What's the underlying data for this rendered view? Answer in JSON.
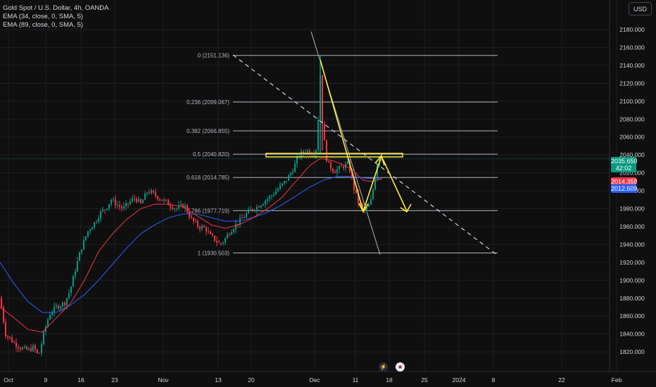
{
  "legend": {
    "symbol": "Gold Spot / U.S. Dollar, 4h, OANDA",
    "ema1": "EMA (34, close, 0, SMA, 5)",
    "ema2": "EMA (89, close, 0, SMA, 5)"
  },
  "currency": "USD",
  "badges": {
    "last_price": "2035.650",
    "countdown": "42:02",
    "ema34": "2014.358",
    "ema89": "2012.609"
  },
  "colors": {
    "background": "#0f0f0f",
    "up": "#089981",
    "down": "#f23645",
    "ema34": "#f23645",
    "ema89": "#2962ff",
    "annotation": "#ffeb3b",
    "fib": "#b2b5be"
  },
  "icons": [
    "lightning-icon",
    "us-flag-icon"
  ],
  "chart_data": {
    "type": "candlestick",
    "x_axis_labels": [
      "Oct",
      "9",
      "16",
      "23",
      "Nov",
      "13",
      "20",
      "Dec",
      "11",
      "18",
      "25",
      "2024",
      "8",
      "22",
      "Feb"
    ],
    "y_ticks": [
      1820,
      1840,
      1860,
      1880,
      1900,
      1920,
      1940,
      1960,
      1980,
      2000,
      2020,
      2040,
      2060,
      2080,
      2100,
      2120,
      2140,
      2160,
      2180
    ],
    "y_tick_labels": [
      "1820.000",
      "1840.000",
      "1860.000",
      "1880.000",
      "1900.000",
      "1920.000",
      "1940.000",
      "1960.000",
      "1980.000",
      "2000.000",
      "2020.000",
      "2040.000",
      "2060.000",
      "2080.000",
      "2100.000",
      "2120.000",
      "2140.000",
      "2160.000",
      "2180.000"
    ],
    "ylim": [
      1809,
      2195
    ],
    "fibonacci_levels": [
      {
        "label": "0 (2151.136)",
        "value": 2151.136
      },
      {
        "label": "0.236 (2099.067)",
        "value": 2099.067
      },
      {
        "label": "0.382 (2066.855)",
        "value": 2066.855
      },
      {
        "label": "0.5 (2040.820)",
        "value": 2040.82
      },
      {
        "label": "0.618 (2014.785)",
        "value": 2014.785
      },
      {
        "label": "0.786 (1977.719)",
        "value": 1977.719
      },
      {
        "label": "1 (1930.503)",
        "value": 1930.503
      }
    ],
    "price_anchors": [
      [
        0,
        1880
      ],
      [
        8,
        1840
      ],
      [
        20,
        1830
      ],
      [
        30,
        1824
      ],
      [
        40,
        1822
      ],
      [
        48,
        1825
      ],
      [
        55,
        1815
      ],
      [
        62,
        1840
      ],
      [
        70,
        1862
      ],
      [
        80,
        1870
      ],
      [
        92,
        1875
      ],
      [
        100,
        1890
      ],
      [
        108,
        1915
      ],
      [
        115,
        1935
      ],
      [
        125,
        1955
      ],
      [
        135,
        1965
      ],
      [
        142,
        1975
      ],
      [
        150,
        1980
      ],
      [
        158,
        1990
      ],
      [
        165,
        1985
      ],
      [
        175,
        1980
      ],
      [
        185,
        1988
      ],
      [
        192,
        1992
      ],
      [
        200,
        1985
      ],
      [
        210,
        2000
      ],
      [
        220,
        1995
      ],
      [
        230,
        1990
      ],
      [
        240,
        1985
      ],
      [
        250,
        1980
      ],
      [
        262,
        1984
      ],
      [
        272,
        1968
      ],
      [
        282,
        1960
      ],
      [
        292,
        1958
      ],
      [
        298,
        1950
      ],
      [
        306,
        1945
      ],
      [
        312,
        1940
      ],
      [
        318,
        1944
      ],
      [
        326,
        1954
      ],
      [
        335,
        1962
      ],
      [
        345,
        1970
      ],
      [
        355,
        1978
      ],
      [
        365,
        1982
      ],
      [
        375,
        1988
      ],
      [
        385,
        1994
      ],
      [
        395,
        2002
      ],
      [
        405,
        2010
      ],
      [
        415,
        2022
      ],
      [
        425,
        2040
      ],
      [
        435,
        2045
      ],
      [
        445,
        2042
      ],
      [
        450,
        2048
      ],
      [
        455,
        2130
      ],
      [
        457,
        2085
      ],
      [
        460,
        2060
      ],
      [
        465,
        2030
      ],
      [
        475,
        2022
      ],
      [
        485,
        2026
      ],
      [
        495,
        2030
      ],
      [
        502,
        2005
      ],
      [
        510,
        1985
      ],
      [
        518,
        1978
      ],
      [
        526,
        1985
      ],
      [
        532,
        2010
      ],
      [
        538,
        2040
      ],
      [
        544,
        2036
      ]
    ],
    "ema34_anchors": [
      [
        0,
        1870
      ],
      [
        20,
        1858
      ],
      [
        40,
        1845
      ],
      [
        60,
        1842
      ],
      [
        80,
        1858
      ],
      [
        100,
        1874
      ],
      [
        120,
        1900
      ],
      [
        140,
        1932
      ],
      [
        160,
        1952
      ],
      [
        180,
        1968
      ],
      [
        200,
        1980
      ],
      [
        220,
        1985
      ],
      [
        240,
        1985
      ],
      [
        260,
        1982
      ],
      [
        280,
        1972
      ],
      [
        300,
        1962
      ],
      [
        320,
        1958
      ],
      [
        340,
        1962
      ],
      [
        360,
        1970
      ],
      [
        380,
        1980
      ],
      [
        400,
        1992
      ],
      [
        420,
        2010
      ],
      [
        440,
        2028
      ],
      [
        455,
        2036
      ],
      [
        470,
        2034
      ],
      [
        485,
        2030
      ],
      [
        500,
        2024
      ],
      [
        515,
        2012
      ],
      [
        530,
        2010
      ],
      [
        545,
        2014
      ]
    ],
    "ema89_anchors": [
      [
        0,
        1920
      ],
      [
        20,
        1896
      ],
      [
        40,
        1876
      ],
      [
        60,
        1864
      ],
      [
        80,
        1864
      ],
      [
        100,
        1872
      ],
      [
        120,
        1884
      ],
      [
        140,
        1900
      ],
      [
        160,
        1918
      ],
      [
        180,
        1936
      ],
      [
        200,
        1952
      ],
      [
        220,
        1962
      ],
      [
        240,
        1970
      ],
      [
        260,
        1974
      ],
      [
        280,
        1974
      ],
      [
        300,
        1970
      ],
      [
        320,
        1966
      ],
      [
        340,
        1966
      ],
      [
        360,
        1970
      ],
      [
        380,
        1976
      ],
      [
        400,
        1984
      ],
      [
        420,
        1994
      ],
      [
        440,
        2004
      ],
      [
        460,
        2012
      ],
      [
        480,
        2016
      ],
      [
        500,
        2016
      ],
      [
        520,
        2014
      ],
      [
        545,
        2013
      ]
    ]
  }
}
